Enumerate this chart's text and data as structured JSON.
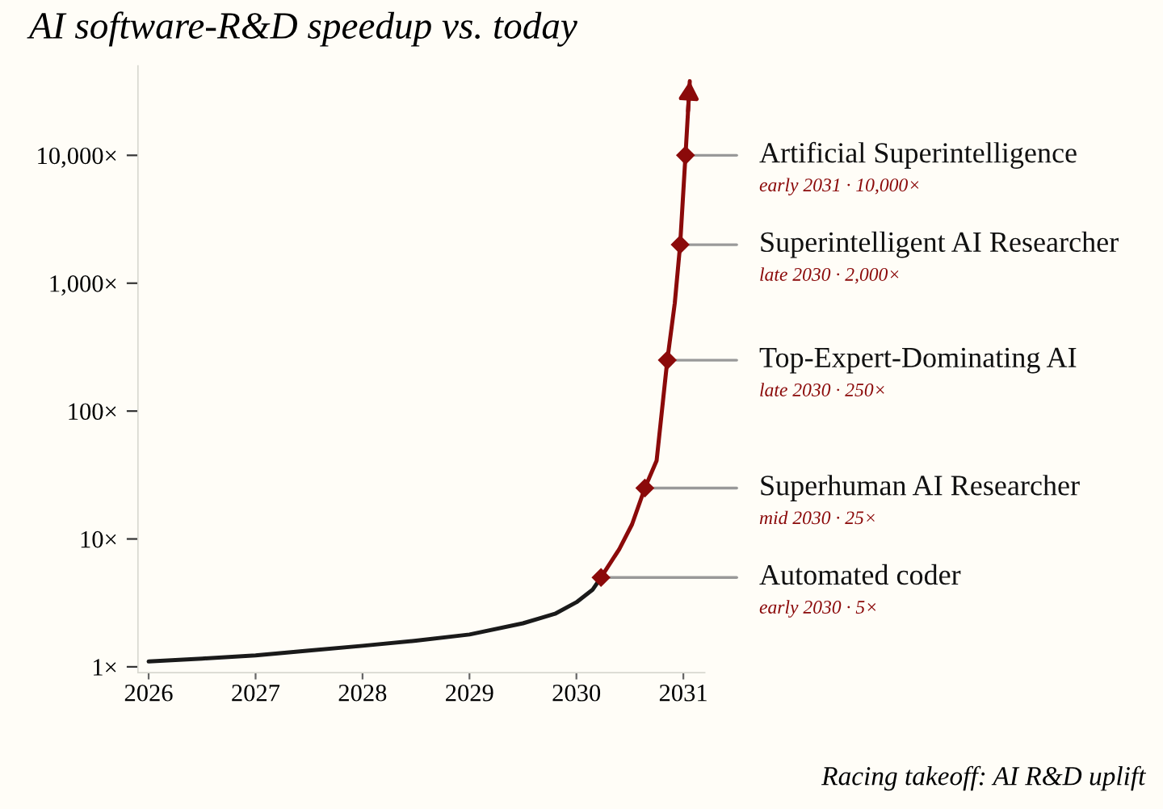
{
  "chart_data": {
    "type": "line",
    "title": "AI software-R&D speedup vs. today",
    "log": "y",
    "grid": false,
    "xlim": [
      2025.9,
      2031.2
    ],
    "xticks": [
      2026,
      2027,
      2028,
      2029,
      2030,
      2031
    ],
    "ylim": [
      0.9,
      50000
    ],
    "yticks": [
      {
        "value": 1,
        "label": "1×"
      },
      {
        "value": 10,
        "label": "10×"
      },
      {
        "value": 100,
        "label": "100×"
      },
      {
        "value": 1000,
        "label": "1,000×"
      },
      {
        "value": 10000,
        "label": "10,000×"
      }
    ],
    "series": [
      {
        "color": "#1a1a1a",
        "x": [
          2026,
          2026.5,
          2027,
          2027.5,
          2028,
          2028.5,
          2029,
          2029.5,
          2029.8,
          2030,
          2030.15,
          2030.23
        ],
        "values": [
          1.1,
          1.16,
          1.23,
          1.34,
          1.46,
          1.6,
          1.79,
          2.19,
          2.6,
          3.2,
          4.0,
          5
        ]
      },
      {
        "color": "#8b0a0a",
        "x": [
          2030.23,
          2030.4,
          2030.52,
          2030.64,
          2030.75,
          2030.85,
          2030.92,
          2030.97,
          2031.02,
          2031.06
        ],
        "values": [
          5,
          8.3,
          13,
          25,
          41,
          250,
          700,
          2000,
          10000,
          38000
        ]
      },
      {
        "type": "scatter",
        "color": "#8b0a0a",
        "marker": "diamond",
        "x": [
          2030.23,
          2030.64,
          2030.85,
          2030.97,
          2031.02
        ],
        "values": [
          5,
          25,
          250,
          2000,
          10000
        ]
      }
    ],
    "annotations": [
      {
        "text": "Automated coder",
        "x": 2030.23,
        "y": 5
      },
      "early 2030 · 5×",
      {
        "text": "Superhuman AI Researcher",
        "x": 2030.64,
        "y": 25
      },
      "mid 2030 · 25×",
      {
        "text": "Top-Expert-Dominating AI",
        "x": 2030.85,
        "y": 250
      },
      "late 2030 · 250×",
      {
        "text": "Superintelligent AI Researcher",
        "x": 2030.97,
        "y": 2000
      },
      "late 2030 · 2,000×",
      {
        "text": "Artificial Superintelligence",
        "x": 2031.02,
        "y": 10000
      },
      "early 2031 · 10,000×",
      "Racing takeoff: AI R&D uplift"
    ]
  }
}
